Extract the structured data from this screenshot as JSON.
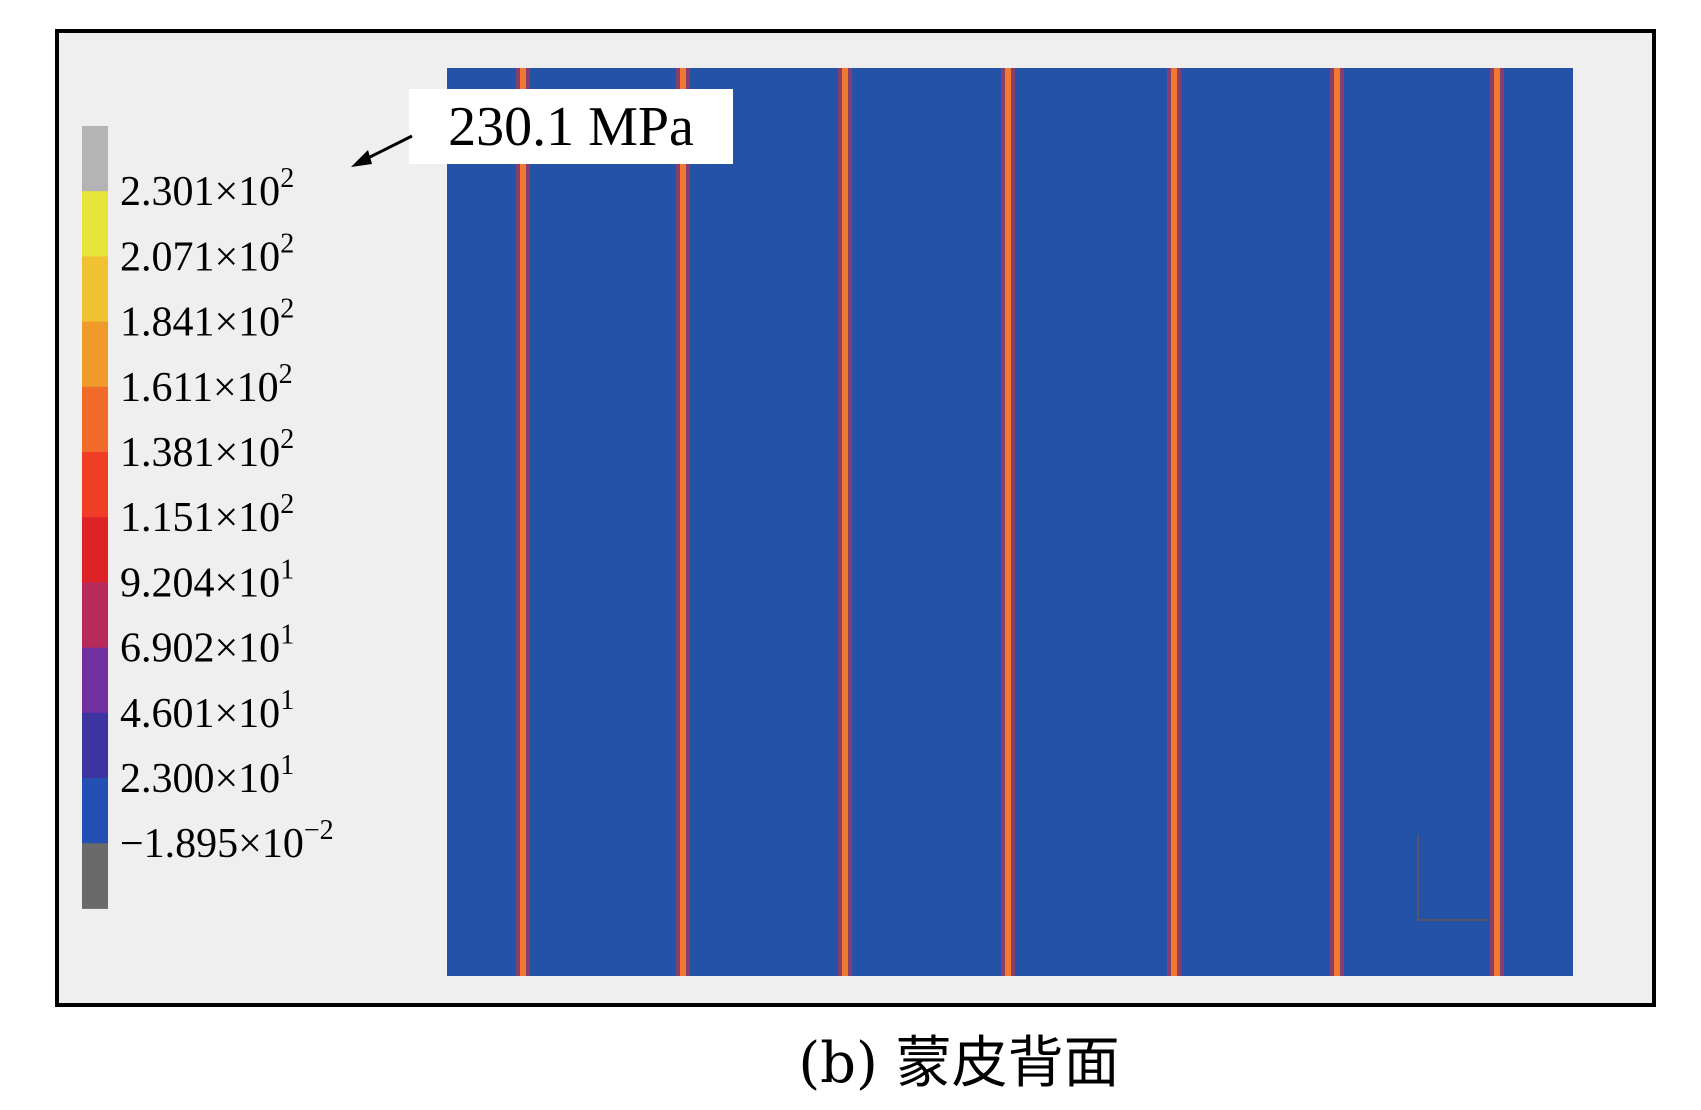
{
  "legend": {
    "labels": [
      {
        "mantissa": "2.301×10",
        "exponent": "2"
      },
      {
        "mantissa": "2.071×10",
        "exponent": "2"
      },
      {
        "mantissa": "1.841×10",
        "exponent": "2"
      },
      {
        "mantissa": "1.611×10",
        "exponent": "2"
      },
      {
        "mantissa": "1.381×10",
        "exponent": "2"
      },
      {
        "mantissa": "1.151×10",
        "exponent": "2"
      },
      {
        "mantissa": "9.204×10",
        "exponent": "1"
      },
      {
        "mantissa": "6.902×10",
        "exponent": "1"
      },
      {
        "mantissa": "4.601×10",
        "exponent": "1"
      },
      {
        "mantissa": "2.300×10",
        "exponent": "1"
      },
      {
        "mantissa": "−1.895×10",
        "exponent": "−2"
      }
    ]
  },
  "annotation": "230.1 MPa",
  "caption": "(b) 蒙皮背面"
}
